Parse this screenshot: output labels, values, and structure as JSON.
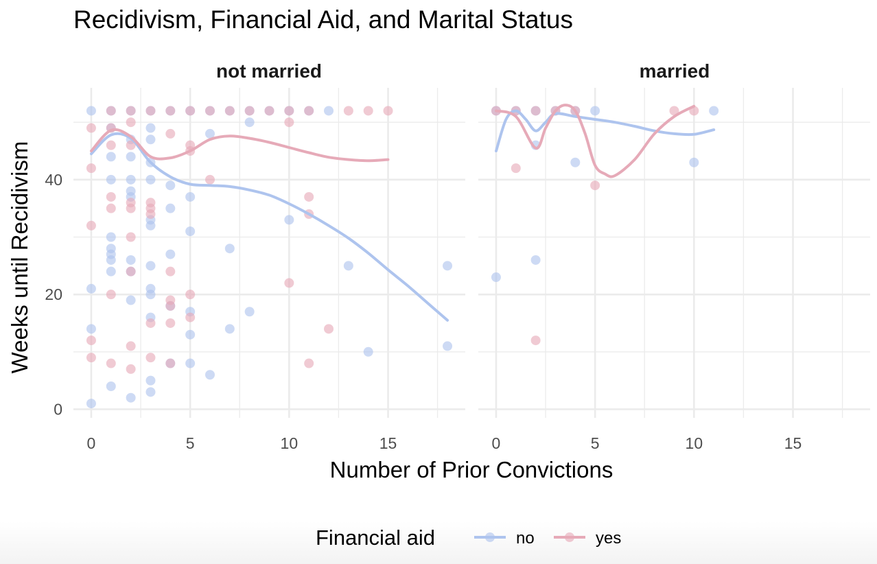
{
  "chart_data": {
    "type": "scatter",
    "title": "Recidivism, Financial Aid, and Marital Status",
    "xlabel": "Number of Prior Convictions",
    "ylabel": "Weeks until Recidivism",
    "xlim": [
      -0.9,
      18.9
    ],
    "ylim": [
      -1.5,
      56
    ],
    "x_ticks": [
      0,
      5,
      10,
      15
    ],
    "y_ticks": [
      0,
      20,
      40
    ],
    "grid": true,
    "legend": {
      "title": "Financial aid",
      "position": "bottom",
      "entries": [
        {
          "label": "no",
          "color": "#aec4ee"
        },
        {
          "label": "yes",
          "color": "#e6aab8"
        }
      ]
    },
    "panels": [
      {
        "label": "not married",
        "series": [
          {
            "name": "no",
            "points": [
              [
                0,
                52
              ],
              [
                1,
                52
              ],
              [
                2,
                52
              ],
              [
                3,
                52
              ],
              [
                4,
                52
              ],
              [
                5,
                52
              ],
              [
                6,
                52
              ],
              [
                7,
                52
              ],
              [
                8,
                52
              ],
              [
                9,
                52
              ],
              [
                10,
                52
              ],
              [
                11,
                52
              ],
              [
                12,
                52
              ],
              [
                8,
                50
              ],
              [
                1,
                49
              ],
              [
                3,
                49
              ],
              [
                6,
                48
              ],
              [
                2,
                47
              ],
              [
                3,
                47
              ],
              [
                1,
                44
              ],
              [
                2,
                44
              ],
              [
                3,
                43
              ],
              [
                1,
                40
              ],
              [
                2,
                40
              ],
              [
                3,
                40
              ],
              [
                4,
                39
              ],
              [
                2,
                38
              ],
              [
                2,
                37
              ],
              [
                5,
                37
              ],
              [
                4,
                35
              ],
              [
                10,
                33
              ],
              [
                3,
                33
              ],
              [
                3,
                32
              ],
              [
                5,
                31
              ],
              [
                1,
                30
              ],
              [
                7,
                28
              ],
              [
                1,
                28
              ],
              [
                1,
                27
              ],
              [
                4,
                27
              ],
              [
                1,
                26
              ],
              [
                2,
                26
              ],
              [
                3,
                25
              ],
              [
                13,
                25
              ],
              [
                18,
                25
              ],
              [
                1,
                24
              ],
              [
                2,
                24
              ],
              [
                0,
                21
              ],
              [
                3,
                21
              ],
              [
                3,
                20
              ],
              [
                2,
                19
              ],
              [
                4,
                18
              ],
              [
                5,
                17
              ],
              [
                8,
                17
              ],
              [
                3,
                16
              ],
              [
                0,
                14
              ],
              [
                7,
                14
              ],
              [
                5,
                13
              ],
              [
                18,
                11
              ],
              [
                14,
                10
              ],
              [
                5,
                8
              ],
              [
                4,
                8
              ],
              [
                6,
                6
              ],
              [
                3,
                5
              ],
              [
                1,
                4
              ],
              [
                3,
                3
              ],
              [
                2,
                2
              ],
              [
                0,
                1
              ]
            ],
            "smooth": [
              [
                0,
                44.5
              ],
              [
                1,
                47.8
              ],
              [
                2,
                47.2
              ],
              [
                3,
                43
              ],
              [
                4,
                40.5
              ],
              [
                5,
                39.2
              ],
              [
                6,
                39
              ],
              [
                7,
                38.8
              ],
              [
                8,
                38.2
              ],
              [
                9,
                37.3
              ],
              [
                10,
                35.8
              ],
              [
                11,
                34
              ],
              [
                12,
                32
              ],
              [
                13,
                29.8
              ],
              [
                14,
                27.2
              ],
              [
                15,
                24.3
              ],
              [
                16,
                21.5
              ],
              [
                17,
                18.5
              ],
              [
                18,
                15.5
              ]
            ]
          },
          {
            "name": "yes",
            "points": [
              [
                1,
                52
              ],
              [
                2,
                52
              ],
              [
                3,
                52
              ],
              [
                4,
                52
              ],
              [
                5,
                52
              ],
              [
                6,
                52
              ],
              [
                7,
                52
              ],
              [
                8,
                52
              ],
              [
                9,
                52
              ],
              [
                10,
                52
              ],
              [
                11,
                52
              ],
              [
                13,
                52
              ],
              [
                14,
                52
              ],
              [
                15,
                52
              ],
              [
                2,
                50
              ],
              [
                10,
                50
              ],
              [
                0,
                49
              ],
              [
                1,
                49
              ],
              [
                4,
                48
              ],
              [
                1,
                46
              ],
              [
                2,
                46
              ],
              [
                5,
                46
              ],
              [
                5,
                45
              ],
              [
                0,
                42
              ],
              [
                6,
                40
              ],
              [
                1,
                37
              ],
              [
                11,
                37
              ],
              [
                2,
                36
              ],
              [
                3,
                36
              ],
              [
                1,
                35
              ],
              [
                2,
                35
              ],
              [
                3,
                35
              ],
              [
                3,
                34
              ],
              [
                11,
                34
              ],
              [
                0,
                32
              ],
              [
                2,
                30
              ],
              [
                4,
                24
              ],
              [
                2,
                24
              ],
              [
                10,
                22
              ],
              [
                1,
                20
              ],
              [
                5,
                20
              ],
              [
                4,
                19
              ],
              [
                4,
                18
              ],
              [
                5,
                16
              ],
              [
                3,
                15
              ],
              [
                4,
                15
              ],
              [
                12,
                14
              ],
              [
                0,
                12
              ],
              [
                2,
                11
              ],
              [
                0,
                9
              ],
              [
                3,
                9
              ],
              [
                1,
                8
              ],
              [
                4,
                8
              ],
              [
                11,
                8
              ],
              [
                2,
                7
              ]
            ],
            "smooth": [
              [
                0,
                45
              ],
              [
                1,
                48.6
              ],
              [
                2,
                47.5
              ],
              [
                3,
                44
              ],
              [
                4,
                43.8
              ],
              [
                5,
                45
              ],
              [
                6,
                47
              ],
              [
                7,
                47.6
              ],
              [
                8,
                47.2
              ],
              [
                9,
                46.5
              ],
              [
                10,
                45.6
              ],
              [
                11,
                44.7
              ],
              [
                12,
                43.9
              ],
              [
                13,
                43.5
              ],
              [
                14,
                43.3
              ],
              [
                15,
                43.5
              ]
            ]
          }
        ]
      },
      {
        "label": "married",
        "series": [
          {
            "name": "no",
            "points": [
              [
                0,
                52
              ],
              [
                1,
                52
              ],
              [
                2,
                52
              ],
              [
                3,
                52
              ],
              [
                4,
                52
              ],
              [
                5,
                52
              ],
              [
                11,
                52
              ],
              [
                2,
                46
              ],
              [
                4,
                43
              ],
              [
                10,
                43
              ],
              [
                2,
                26
              ],
              [
                0,
                23
              ]
            ],
            "smooth": [
              [
                0,
                45
              ],
              [
                0.5,
                50.5
              ],
              [
                1,
                52
              ],
              [
                1.5,
                50.5
              ],
              [
                2,
                48.5
              ],
              [
                2.5,
                50
              ],
              [
                3,
                51.5
              ],
              [
                4,
                51
              ],
              [
                5,
                50.5
              ],
              [
                6,
                50
              ],
              [
                7,
                49.3
              ],
              [
                8,
                48.5
              ],
              [
                9,
                48
              ],
              [
                10,
                47.9
              ],
              [
                11,
                48.7
              ]
            ]
          },
          {
            "name": "yes",
            "points": [
              [
                0,
                52
              ],
              [
                1,
                52
              ],
              [
                2,
                52
              ],
              [
                3,
                52
              ],
              [
                4,
                52
              ],
              [
                9,
                52
              ],
              [
                10,
                52
              ],
              [
                1,
                42
              ],
              [
                5,
                39
              ],
              [
                2,
                12
              ]
            ],
            "smooth": [
              [
                0,
                52
              ],
              [
                1,
                51
              ],
              [
                2,
                45.5
              ],
              [
                2.5,
                49
              ],
              [
                3,
                52
              ],
              [
                3.5,
                53
              ],
              [
                4,
                52
              ],
              [
                4.5,
                48
              ],
              [
                5,
                42.5
              ],
              [
                5.5,
                41
              ],
              [
                6,
                40.7
              ],
              [
                7,
                43.5
              ],
              [
                8,
                48
              ],
              [
                9,
                51
              ],
              [
                10,
                52.8
              ]
            ]
          }
        ]
      }
    ]
  }
}
